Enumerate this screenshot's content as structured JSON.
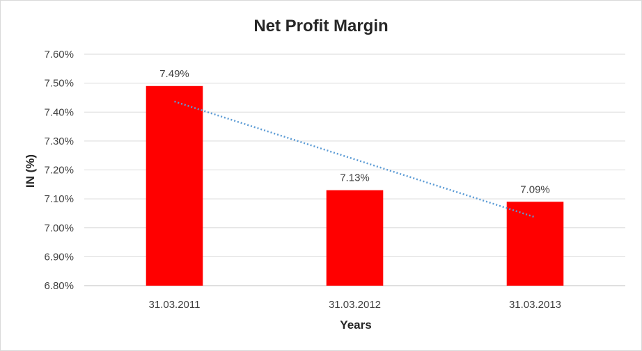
{
  "chart_data": {
    "type": "bar",
    "title": "Net Profit Margin",
    "xlabel": "Years",
    "ylabel": "IN (%)",
    "categories": [
      "31.03.2011",
      "31.03.2012",
      "31.03.2013"
    ],
    "values": [
      7.49,
      7.13,
      7.09
    ],
    "data_labels": [
      "7.49%",
      "7.13%",
      "7.09%"
    ],
    "ylim": [
      6.8,
      7.6
    ],
    "ytick_step": 0.1,
    "yticks": [
      "6.80%",
      "6.90%",
      "7.00%",
      "7.10%",
      "7.20%",
      "7.30%",
      "7.40%",
      "7.50%",
      "7.60%"
    ],
    "bar_color": "#ff0000",
    "trendline": {
      "type": "linear",
      "color": "#5b9bd5",
      "style": "dotted"
    },
    "grid": true,
    "legend": "none"
  }
}
